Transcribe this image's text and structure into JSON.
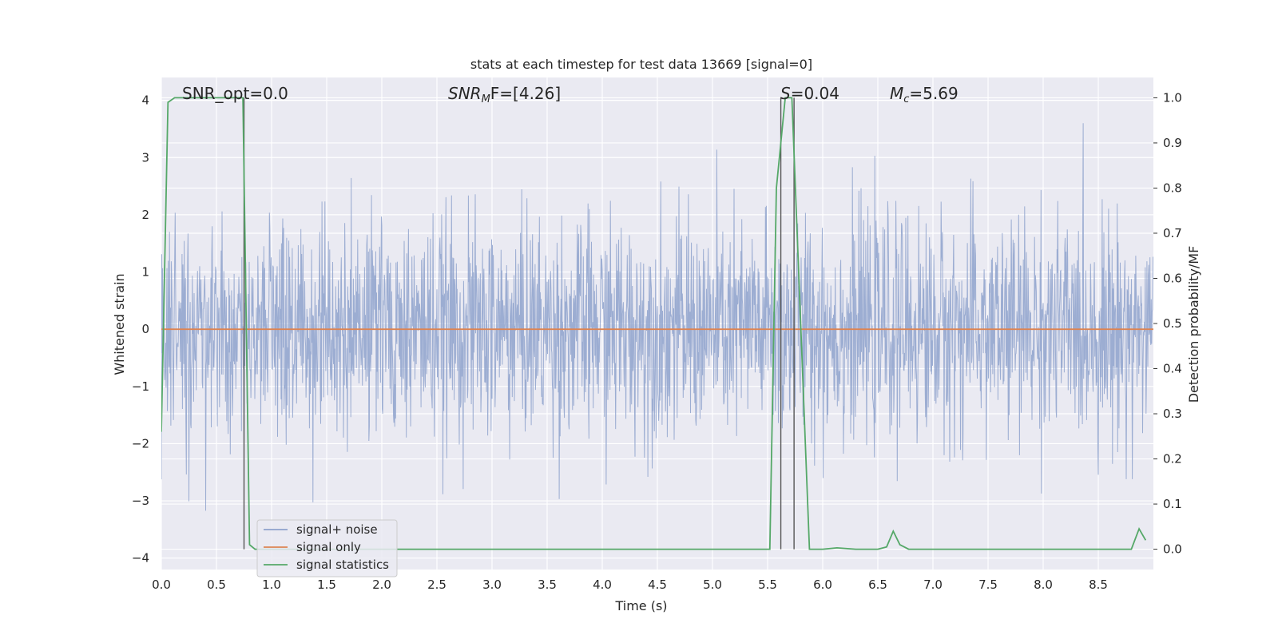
{
  "chart_data": {
    "type": "line",
    "title": "stats at each timestep for test data 13669 [signal=0]",
    "xlabel": "Time (s)",
    "ylabel_left": "Whitened strain",
    "ylabel_right": "Detection probability/MF",
    "xlim": [
      0.0,
      9.0
    ],
    "ylim_left": [
      -4.2,
      4.4
    ],
    "ylim_right": [
      -0.045,
      1.045
    ],
    "x_ticks": [
      "0.0",
      "0.5",
      "1.0",
      "1.5",
      "2.0",
      "2.5",
      "3.0",
      "3.5",
      "4.0",
      "4.5",
      "5.0",
      "5.5",
      "6.0",
      "6.5",
      "7.0",
      "7.5",
      "8.0",
      "8.5"
    ],
    "y_ticks_left": [
      "4",
      "3",
      "2",
      "1",
      "0",
      "−1",
      "−2",
      "−3",
      "−4"
    ],
    "y_ticks_right": [
      "1.0",
      "0.9",
      "0.8",
      "0.7",
      "0.6",
      "0.5",
      "0.4",
      "0.3",
      "0.2",
      "0.1",
      "0.0"
    ],
    "grid": true,
    "legend_position": "lower-left",
    "legend": [
      {
        "label": "signal+ noise",
        "color": "#8ea2cc"
      },
      {
        "label": "signal only",
        "color": "#dd8452"
      },
      {
        "label": "signal statistics",
        "color": "#55a868"
      }
    ],
    "annotations": {
      "snr_opt": "SNR_opt=0.0",
      "snr_mf_prefix": "SNR",
      "snr_mf_sub": "M",
      "snr_mf_suffix": "F=[4.26]",
      "s_stat_sym": "S",
      "s_stat_val": "=0.04",
      "mc_sym": "M",
      "mc_sub": "c",
      "mc_val": "=5.69"
    },
    "series": [
      {
        "name": "signal+ noise",
        "axis": "left",
        "color": "#8ea2cc",
        "description_range": [
          -3.5,
          3.6
        ],
        "band_typical": [
          -1.5,
          1.65
        ],
        "sample_rate_hz": 256
      },
      {
        "name": "signal only",
        "axis": "left",
        "color": "#dd8452",
        "x": [
          0.0,
          9.0
        ],
        "y": [
          0.0,
          0.0
        ]
      },
      {
        "name": "signal statistics",
        "axis": "right",
        "color": "#55a868",
        "x": [
          0.0,
          0.06,
          0.12,
          0.5,
          0.7,
          0.74,
          0.8,
          0.85,
          5.52,
          5.58,
          5.66,
          5.72,
          5.8,
          5.88,
          6.0,
          6.13,
          6.3,
          6.5,
          6.58,
          6.64,
          6.7,
          6.78,
          8.8,
          8.87,
          8.93
        ],
        "y": [
          0.26,
          0.99,
          1.0,
          1.0,
          1.0,
          1.0,
          0.01,
          0.0,
          0.0,
          0.8,
          1.0,
          1.0,
          0.5,
          0.0,
          0.0,
          0.003,
          0.0,
          0.0,
          0.005,
          0.04,
          0.01,
          0.0,
          0.0,
          0.045,
          0.02
        ]
      }
    ],
    "vertical_lines": {
      "color": "#555555",
      "x": [
        0.75,
        5.62,
        5.74
      ]
    }
  }
}
